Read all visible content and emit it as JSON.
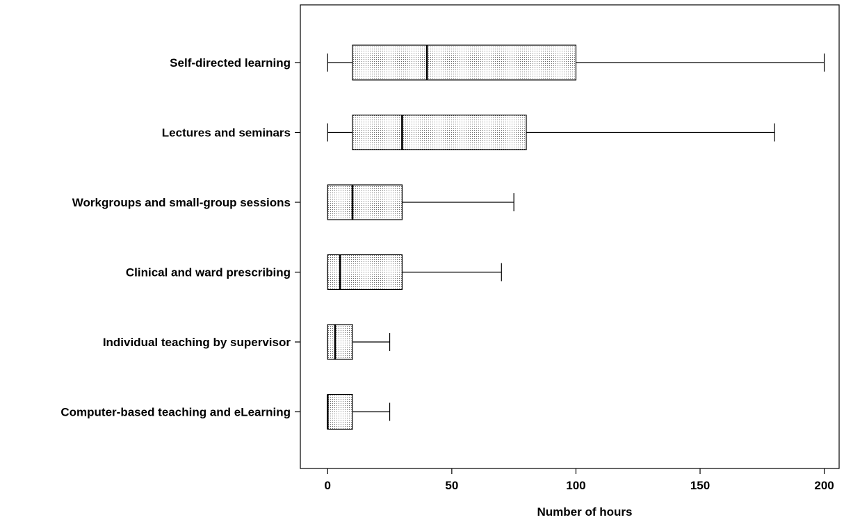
{
  "chart_data": {
    "type": "boxplot",
    "orientation": "horizontal",
    "xlabel": "Number of hours",
    "xlim": [
      -11,
      206
    ],
    "x_ticks": [
      "0",
      "50",
      "100",
      "150",
      "200"
    ],
    "grid": false,
    "categories": [
      "Self-directed learning",
      "Lectures and seminars",
      "Workgroups and small-group sessions",
      "Clinical and ward prescribing",
      "Individual teaching by supervisor",
      "Computer-based teaching and eLearning"
    ],
    "boxes": [
      {
        "min": 0,
        "q1": 10,
        "median": 40,
        "q3": 100,
        "max": 200
      },
      {
        "min": 0,
        "q1": 10,
        "median": 30,
        "q3": 80,
        "max": 180
      },
      {
        "min": 0,
        "q1": 0,
        "median": 10,
        "q3": 30,
        "max": 75
      },
      {
        "min": 0,
        "q1": 0,
        "median": 5,
        "q3": 30,
        "max": 70
      },
      {
        "min": 0,
        "q1": 0,
        "median": 3,
        "q3": 10,
        "max": 25
      },
      {
        "min": 0,
        "q1": 0,
        "median": 0,
        "q3": 10,
        "max": 25
      }
    ]
  }
}
